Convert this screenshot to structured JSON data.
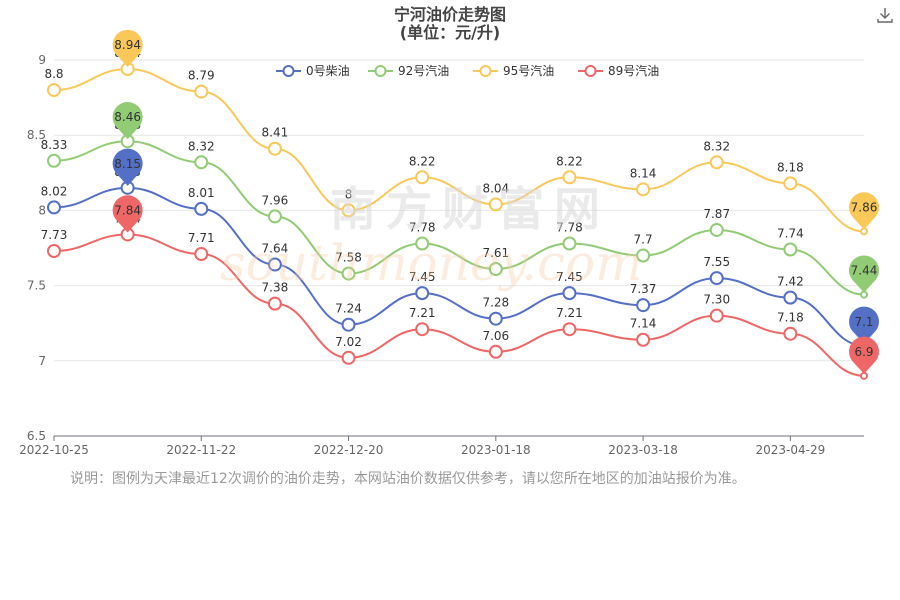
{
  "header": {
    "title": "宁河油价走势图",
    "subtitle": "(单位：元/升)"
  },
  "toolbar": {
    "download_icon": "download-icon"
  },
  "watermark": {
    "cn": "南方财富网",
    "en": "southmoney.com"
  },
  "note": "说明：图例为天津最近12次调价的油价走势，本网站油价数据仅供参考，请以您所在地区的加油站报价为准。",
  "chart_data": {
    "type": "line",
    "title": "宁河油价走势图",
    "subtitle": "(单位：元/升)",
    "xlabel": "",
    "ylabel": "",
    "ylim": [
      6.5,
      9
    ],
    "y_ticks": [
      "6.5",
      "7",
      "7.5",
      "8",
      "8.5",
      "9"
    ],
    "x_tick_labels": [
      "2022-10-25",
      "2022-11-22",
      "2022-12-20",
      "2023-01-18",
      "2023-03-18",
      "2023-04-29"
    ],
    "x_tick_indices": [
      0,
      2,
      4,
      6,
      8,
      10
    ],
    "grid": true,
    "legend_position": "top",
    "smooth": true,
    "series": [
      {
        "name": "0号柴油",
        "color": "#5470c6",
        "values": [
          8.02,
          8.15,
          8.01,
          7.64,
          7.24,
          7.45,
          7.28,
          7.45,
          7.37,
          7.55,
          7.42,
          7.1
        ],
        "labels": [
          "8.02",
          "8.15",
          "8.01",
          "7.64",
          "7.24",
          "7.45",
          "7.28",
          "7.45",
          "7.37",
          "7.55",
          "7.42",
          "7.1"
        ],
        "max_marker": {
          "index": 1,
          "label": "8.15"
        },
        "min_marker": {
          "index": 11,
          "label": "7.1"
        }
      },
      {
        "name": "92号汽油",
        "color": "#91cc75",
        "values": [
          8.33,
          8.46,
          8.32,
          7.96,
          7.58,
          7.78,
          7.61,
          7.78,
          7.7,
          7.87,
          7.74,
          7.44
        ],
        "labels": [
          "8.33",
          "8.46",
          "8.32",
          "7.96",
          "7.58",
          "7.78",
          "7.61",
          "7.78",
          "7.7",
          "7.87",
          "7.74",
          "7.44"
        ],
        "max_marker": {
          "index": 1,
          "label": "8.46"
        },
        "min_marker": {
          "index": 11,
          "label": "7.44"
        }
      },
      {
        "name": "95号汽油",
        "color": "#fac858",
        "values": [
          8.8,
          8.94,
          8.79,
          8.41,
          8.0,
          8.22,
          8.04,
          8.22,
          8.14,
          8.32,
          8.18,
          7.86
        ],
        "labels": [
          "8.8",
          "8.94",
          "8.79",
          "8.41",
          "8",
          "8.22",
          "8.04",
          "8.22",
          "8.14",
          "8.32",
          "8.18",
          "7.86"
        ],
        "max_marker": {
          "index": 1,
          "label": "8.94"
        },
        "min_marker": {
          "index": 11,
          "label": "7.86"
        }
      },
      {
        "name": "89号汽油",
        "color": "#ee6666",
        "values": [
          7.73,
          7.84,
          7.71,
          7.38,
          7.02,
          7.21,
          7.06,
          7.21,
          7.14,
          7.3,
          7.18,
          6.9
        ],
        "labels": [
          "7.73",
          "7.84",
          "7.71",
          "7.38",
          "7.02",
          "7.21",
          "7.06",
          "7.21",
          "7.14",
          "7.30",
          "7.18",
          "6.9"
        ],
        "max_marker": {
          "index": 1,
          "label": "7.84"
        },
        "min_marker": {
          "index": 11,
          "label": "6.9"
        }
      }
    ]
  }
}
